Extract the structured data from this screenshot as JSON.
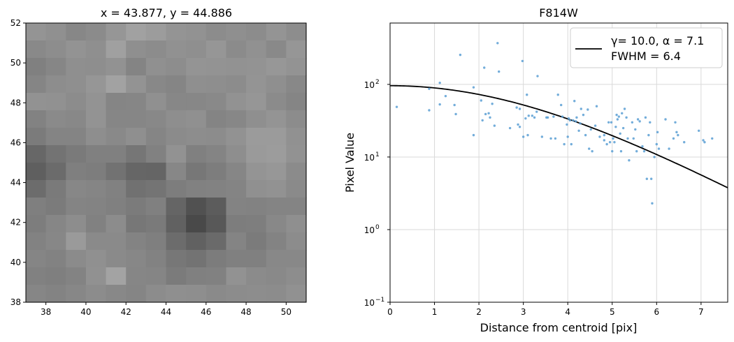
{
  "chart_data": [
    {
      "type": "heatmap",
      "title": "x = 43.877, y = 44.886",
      "xlabel": "",
      "ylabel": "",
      "xlim": [
        37,
        51
      ],
      "ylim": [
        38,
        52
      ],
      "xticks": [
        "38",
        "40",
        "42",
        "44",
        "46",
        "48",
        "50"
      ],
      "yticks": [
        "38",
        "40",
        "42",
        "44",
        "46",
        "48",
        "50",
        "52"
      ],
      "colormap": "gray",
      "grid": [
        [
          148,
          144,
          135,
          139,
          150,
          161,
          156,
          148,
          146,
          140,
          143,
          140,
          148,
          141
        ],
        [
          137,
          141,
          147,
          143,
          160,
          143,
          140,
          145,
          143,
          150,
          139,
          145,
          137,
          150
        ],
        [
          128,
          134,
          143,
          142,
          146,
          132,
          144,
          141,
          148,
          147,
          146,
          147,
          151,
          147
        ],
        [
          133,
          141,
          143,
          150,
          162,
          147,
          136,
          133,
          143,
          142,
          140,
          148,
          143,
          136
        ],
        [
          146,
          145,
          140,
          147,
          133,
          134,
          144,
          135,
          135,
          137,
          146,
          150,
          139,
          133
        ],
        [
          130,
          138,
          136,
          147,
          134,
          134,
          136,
          142,
          144,
          132,
          135,
          143,
          148,
          140
        ],
        [
          123,
          132,
          132,
          142,
          137,
          143,
          133,
          139,
          141,
          140,
          146,
          155,
          155,
          145
        ],
        [
          103,
          115,
          122,
          128,
          128,
          118,
          129,
          146,
          128,
          132,
          142,
          154,
          156,
          146
        ],
        [
          95,
          107,
          127,
          125,
          114,
          102,
          101,
          135,
          119,
          125,
          134,
          148,
          151,
          139
        ],
        [
          108,
          122,
          135,
          133,
          129,
          113,
          116,
          125,
          129,
          130,
          132,
          144,
          146,
          138
        ],
        [
          127,
          123,
          132,
          131,
          128,
          123,
          128,
          101,
          81,
          92,
          131,
          130,
          132,
          132
        ],
        [
          125,
          134,
          141,
          129,
          140,
          119,
          122,
          97,
          73,
          88,
          125,
          126,
          136,
          143
        ],
        [
          130,
          135,
          154,
          138,
          138,
          131,
          127,
          108,
          97,
          106,
          132,
          123,
          131,
          140
        ],
        [
          133,
          130,
          139,
          144,
          138,
          135,
          130,
          119,
          115,
          124,
          128,
          128,
          136,
          136
        ],
        [
          129,
          127,
          131,
          145,
          163,
          134,
          133,
          123,
          128,
          129,
          146,
          139,
          137,
          141
        ],
        [
          134,
          131,
          135,
          140,
          136,
          133,
          140,
          143,
          142,
          138,
          140,
          141,
          140,
          145
        ]
      ]
    },
    {
      "type": "scatter",
      "title": "F814W",
      "xlabel": "Distance from centroid [pix]",
      "ylabel": "Pixel Value",
      "xlim": [
        0,
        7.6
      ],
      "ylim": [
        0.1,
        700
      ],
      "yscale": "log",
      "grid": true,
      "legend_position": "top-right",
      "xticks": [
        "0",
        "1",
        "2",
        "3",
        "4",
        "5",
        "6",
        "7"
      ],
      "yticks": [
        {
          "value": 0.1,
          "label": "10"
        },
        {
          "value": 1,
          "label": "10"
        },
        {
          "value": 10,
          "label": "10"
        },
        {
          "value": 100,
          "label": "10"
        }
      ],
      "ytick_exponents": [
        "−1",
        "0",
        "1",
        "2"
      ],
      "series": [
        {
          "name": "γ= 10.0, α = 7.1",
          "name2": "FWHM = 6.4",
          "kind": "line",
          "color": "#000000",
          "gamma": 10.0,
          "alpha": 7.1,
          "amplitude": 96
        },
        {
          "kind": "scatter",
          "color": "#5a9fd4",
          "points": [
            [
              0.15,
              49
            ],
            [
              0.88,
              44
            ],
            [
              0.88,
              87
            ],
            [
              1.12,
              105
            ],
            [
              1.12,
              53
            ],
            [
              1.25,
              69
            ],
            [
              1.45,
              52
            ],
            [
              1.48,
              39
            ],
            [
              1.58,
              255
            ],
            [
              1.88,
              91
            ],
            [
              1.88,
              20
            ],
            [
              2.05,
              60
            ],
            [
              2.08,
              32
            ],
            [
              2.12,
              170
            ],
            [
              2.15,
              39
            ],
            [
              2.22,
              40
            ],
            [
              2.25,
              35
            ],
            [
              2.3,
              54
            ],
            [
              2.35,
              27
            ],
            [
              2.42,
              370
            ],
            [
              2.45,
              150
            ],
            [
              2.7,
              25
            ],
            [
              2.85,
              48
            ],
            [
              2.88,
              28
            ],
            [
              2.92,
              46
            ],
            [
              2.92,
              26
            ],
            [
              2.98,
              210
            ],
            [
              3.0,
              19
            ],
            [
              3.05,
              34
            ],
            [
              3.08,
              72
            ],
            [
              3.1,
              20
            ],
            [
              3.12,
              37
            ],
            [
              3.2,
              37
            ],
            [
              3.25,
              35
            ],
            [
              3.3,
              42
            ],
            [
              3.32,
              130
            ],
            [
              3.42,
              19
            ],
            [
              3.52,
              35
            ],
            [
              3.55,
              35
            ],
            [
              3.62,
              18
            ],
            [
              3.68,
              36
            ],
            [
              3.72,
              18
            ],
            [
              3.78,
              72
            ],
            [
              3.85,
              52
            ],
            [
              3.88,
              36
            ],
            [
              3.92,
              15
            ],
            [
              3.98,
              28
            ],
            [
              4.0,
              19
            ],
            [
              4.02,
              34
            ],
            [
              4.05,
              32
            ],
            [
              4.08,
              15
            ],
            [
              4.12,
              32
            ],
            [
              4.15,
              59
            ],
            [
              4.18,
              31
            ],
            [
              4.2,
              35
            ],
            [
              4.25,
              23
            ],
            [
              4.28,
              29
            ],
            [
              4.3,
              46
            ],
            [
              4.35,
              38
            ],
            [
              4.4,
              20
            ],
            [
              4.45,
              45
            ],
            [
              4.48,
              13
            ],
            [
              4.52,
              24
            ],
            [
              4.55,
              12
            ],
            [
              4.62,
              27
            ],
            [
              4.65,
              50
            ],
            [
              4.72,
              19
            ],
            [
              4.82,
              17
            ],
            [
              4.82,
              20
            ],
            [
              4.88,
              15
            ],
            [
              4.92,
              30
            ],
            [
              4.95,
              16
            ],
            [
              4.98,
              30
            ],
            [
              5.0,
              12
            ],
            [
              5.02,
              18
            ],
            [
              5.05,
              16
            ],
            [
              5.08,
              26
            ],
            [
              5.1,
              38
            ],
            [
              5.12,
              33
            ],
            [
              5.15,
              36
            ],
            [
              5.18,
              21
            ],
            [
              5.2,
              12
            ],
            [
              5.22,
              40
            ],
            [
              5.25,
              25
            ],
            [
              5.28,
              46
            ],
            [
              5.32,
              35
            ],
            [
              5.35,
              18
            ],
            [
              5.38,
              9
            ],
            [
              5.45,
              30
            ],
            [
              5.48,
              18
            ],
            [
              5.52,
              24
            ],
            [
              5.55,
              12
            ],
            [
              5.58,
              33
            ],
            [
              5.62,
              31
            ],
            [
              5.68,
              14
            ],
            [
              5.72,
              12
            ],
            [
              5.75,
              35
            ],
            [
              5.78,
              5
            ],
            [
              5.82,
              20
            ],
            [
              5.85,
              30
            ],
            [
              5.88,
              5
            ],
            [
              5.9,
              2.3
            ],
            [
              5.95,
              10
            ],
            [
              6.0,
              15
            ],
            [
              6.02,
              22
            ],
            [
              6.05,
              13
            ],
            [
              6.2,
              33
            ],
            [
              6.28,
              13
            ],
            [
              6.38,
              18
            ],
            [
              6.42,
              30
            ],
            [
              6.45,
              22
            ],
            [
              6.48,
              20
            ],
            [
              6.62,
              16
            ],
            [
              6.95,
              23
            ],
            [
              7.05,
              17
            ],
            [
              7.08,
              16
            ],
            [
              7.25,
              18
            ]
          ]
        }
      ]
    }
  ]
}
